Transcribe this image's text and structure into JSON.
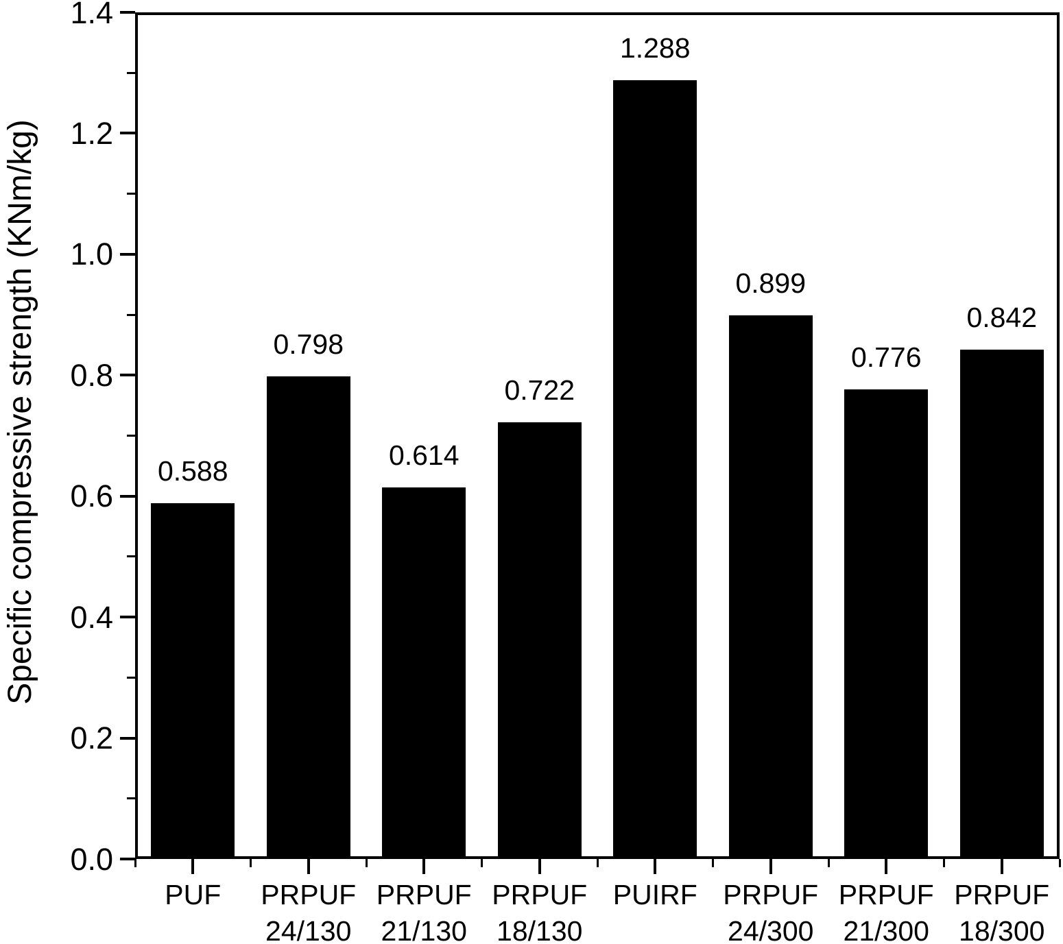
{
  "chart_data": {
    "type": "bar",
    "title": "",
    "ylabel": "Specific compressive strength (KNm/kg)",
    "xlabel": "",
    "ylim": [
      0.0,
      1.4
    ],
    "y_major_step": 0.2,
    "y_minor_step": 0.1,
    "y_tick_labels": [
      "0.0",
      "0.2",
      "0.4",
      "0.6",
      "0.8",
      "1.0",
      "1.2",
      "1.4"
    ],
    "grid": "off",
    "legend": "none",
    "colors": {
      "bar": "#000000",
      "axis": "#000000",
      "text": "#000000",
      "background": "#ffffff"
    },
    "categories": [
      [
        "PUF"
      ],
      [
        "PRPUF",
        "24/130"
      ],
      [
        "PRPUF",
        "21/130"
      ],
      [
        "PRPUF",
        "18/130"
      ],
      [
        "PUIRF"
      ],
      [
        "PRPUF",
        "24/300"
      ],
      [
        "PRPUF",
        "21/300"
      ],
      [
        "PRPUF",
        "18/300"
      ]
    ],
    "values": [
      0.588,
      0.798,
      0.614,
      0.722,
      1.288,
      0.899,
      0.776,
      0.842
    ],
    "value_labels": [
      "0.588",
      "0.798",
      "0.614",
      "0.722",
      "1.288",
      "0.899",
      "0.776",
      "0.842"
    ]
  }
}
